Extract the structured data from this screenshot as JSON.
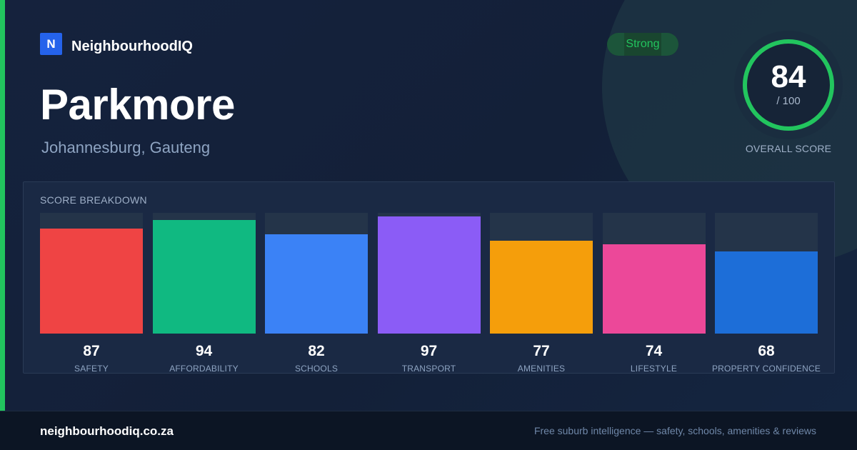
{
  "brand": {
    "logo_letter": "N",
    "name": "NeighbourhoodIQ",
    "logo_color": "#2563eb"
  },
  "suburb": {
    "name": "Parkmore",
    "location": "Johannesburg, Gauteng"
  },
  "rating": {
    "label": "Strong",
    "color": "#22c55e"
  },
  "overall": {
    "score": "84",
    "max": "/ 100",
    "caption": "OVERALL SCORE",
    "fraction": 0.84
  },
  "breakdown": {
    "title": "SCORE BREAKDOWN",
    "items": [
      {
        "value": "87",
        "label": "SAFETY",
        "color": "#ef4444"
      },
      {
        "value": "94",
        "label": "AFFORDABILITY",
        "color": "#10b981"
      },
      {
        "value": "82",
        "label": "SCHOOLS",
        "color": "#3b82f6"
      },
      {
        "value": "97",
        "label": "TRANSPORT",
        "color": "#8b5cf6"
      },
      {
        "value": "77",
        "label": "AMENITIES",
        "color": "#f59e0b"
      },
      {
        "value": "74",
        "label": "LIFESTYLE",
        "color": "#ec4899"
      },
      {
        "value": "68",
        "label": "PROPERTY CONFIDENCE",
        "color": "#1d6ed8"
      }
    ]
  },
  "footer": {
    "domain": "neighbourhoodiq.co.za",
    "tagline": "Free suburb intelligence — safety, schools, amenities & reviews"
  }
}
